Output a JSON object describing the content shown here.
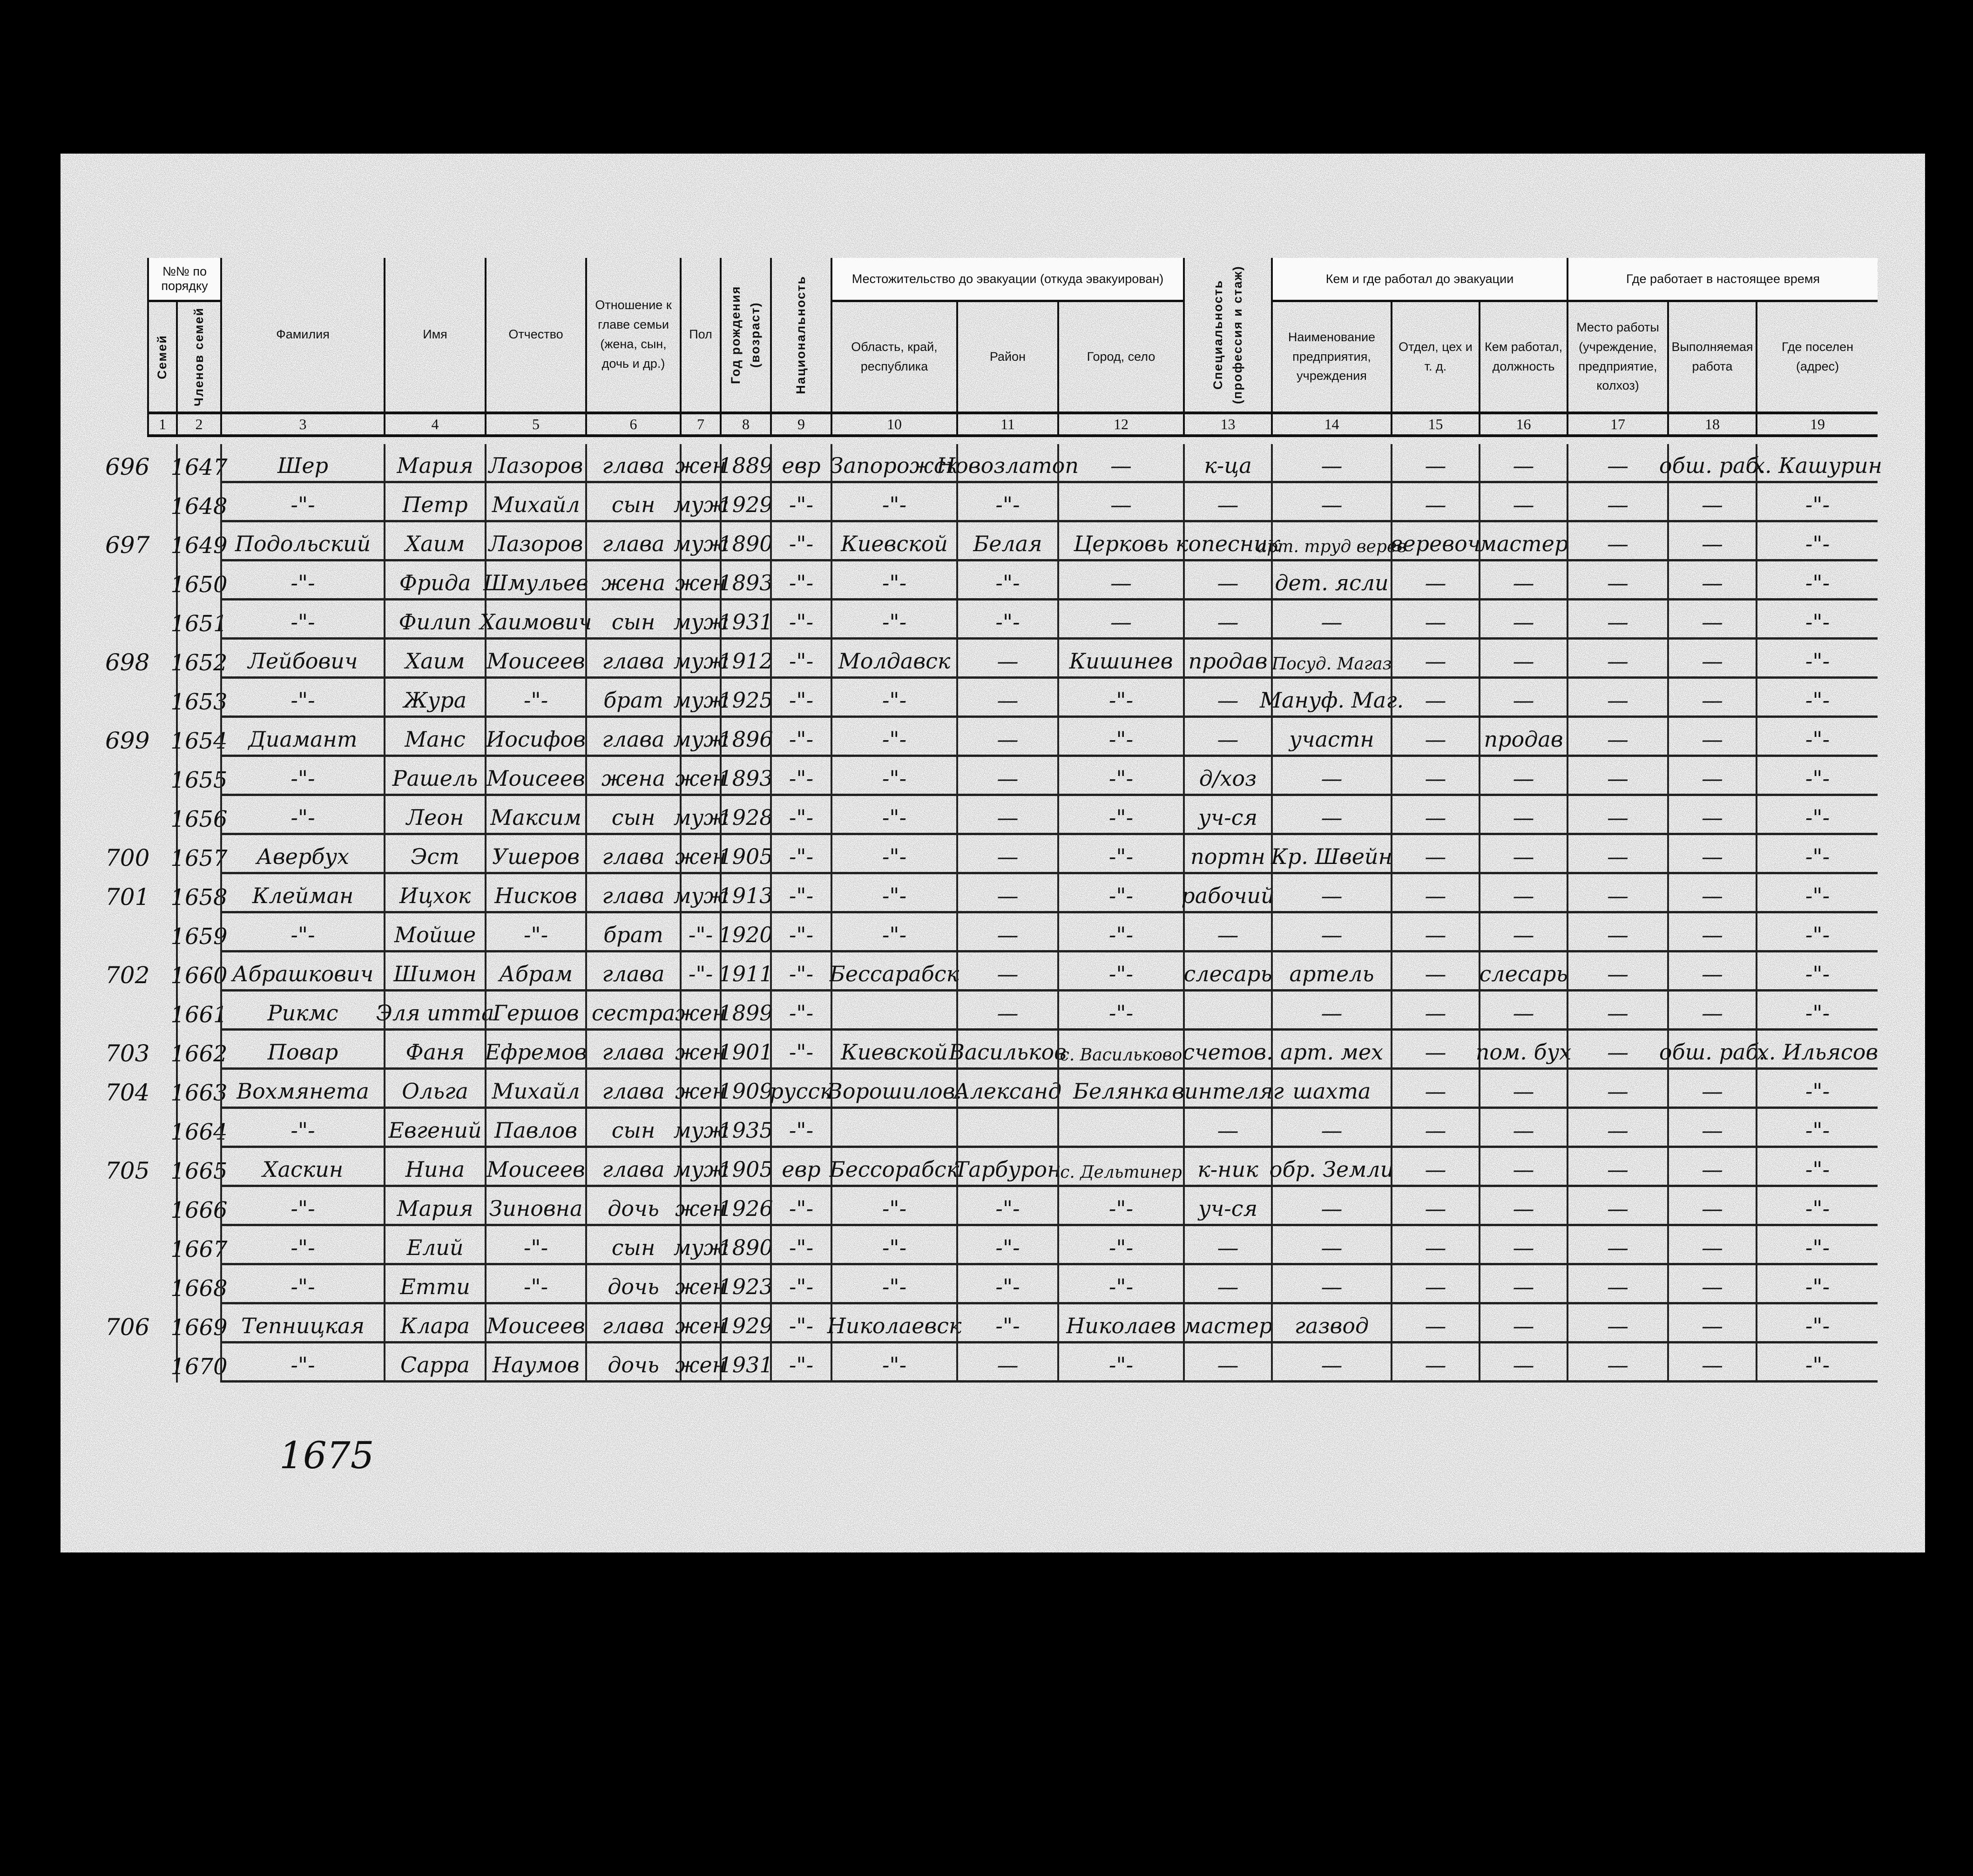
{
  "header": {
    "group_order_no": "№№ по порядку",
    "group_residence": "Местожительство до эвакуации (откуда эвакуирован)",
    "group_prev_work": "Кем и где работал до эвакуации",
    "group_current_work": "Где работает в настоящее время",
    "columns": [
      "Семей",
      "Членов семей",
      "Фамилия",
      "Имя",
      "Отчество",
      "Отношение к главе семьи (жена, сын, дочь и др.)",
      "Пол",
      "Год рождения (возраст)",
      "Национальность",
      "Область, край, республика",
      "Район",
      "Город, село",
      "Специальность (профессия и стаж)",
      "Наименование предприятия, учреждения",
      "Отдел, цех и т. д.",
      "Кем работал, должность",
      "Место работы (учреждение, предприятие, колхоз)",
      "Выполняемая работа",
      "Где поселен (адрес)"
    ],
    "numbers": [
      "1",
      "2",
      "3",
      "4",
      "5",
      "6",
      "7",
      "8",
      "9",
      "10",
      "11",
      "12",
      "13",
      "14",
      "15",
      "16",
      "17",
      "18",
      "19"
    ]
  },
  "rows": [
    [
      "696",
      "1647",
      "Шер",
      "Мария",
      "Лазоров",
      "глава",
      "жен",
      "1889",
      "евр",
      "Запорожск",
      "Новозлатоп",
      "—",
      "к-ца",
      "—",
      "—",
      "—",
      "—",
      "обш. раб.",
      "х. Кашурин"
    ],
    [
      "",
      "1648",
      "-\"-",
      "Петр",
      "Михайл",
      "сын",
      "муж",
      "1929",
      "-\"-",
      "-\"-",
      "-\"-",
      "—",
      "—",
      "—",
      "—",
      "—",
      "—",
      "—",
      "-\"-"
    ],
    [
      "697",
      "1649",
      "Подольский",
      "Хаим",
      "Лазоров",
      "глава",
      "муж",
      "1890",
      "-\"-",
      "Киевской",
      "Белая",
      "Церковь",
      "копесник",
      "арт. труд верев",
      "веревоч",
      "мастер",
      "—",
      "—",
      "-\"-"
    ],
    [
      "",
      "1650",
      "-\"-",
      "Фрида",
      "Шмульев",
      "жена",
      "жен",
      "1893",
      "-\"-",
      "-\"-",
      "-\"-",
      "—",
      "—",
      "дет. ясли",
      "—",
      "—",
      "—",
      "—",
      "-\"-"
    ],
    [
      "",
      "1651",
      "-\"-",
      "Филип",
      "Хаимович",
      "сын",
      "муж",
      "1931",
      "-\"-",
      "-\"-",
      "-\"-",
      "—",
      "—",
      "—",
      "—",
      "—",
      "—",
      "—",
      "-\"-"
    ],
    [
      "698",
      "1652",
      "Лейбович",
      "Хаим",
      "Моисеев",
      "глава",
      "муж",
      "1912",
      "-\"-",
      "Молдавск",
      "—",
      "Кишинев",
      "продав",
      "Посуд. Магаз",
      "—",
      "—",
      "—",
      "—",
      "-\"-"
    ],
    [
      "",
      "1653",
      "-\"-",
      "Жура",
      "-\"-",
      "брат",
      "муж",
      "1925",
      "-\"-",
      "-\"-",
      "—",
      "-\"-",
      "—",
      "Мануф. Маг.",
      "—",
      "—",
      "—",
      "—",
      "-\"-"
    ],
    [
      "699",
      "1654",
      "Диамант",
      "Манс",
      "Иосифов",
      "глава",
      "муж",
      "1896",
      "-\"-",
      "-\"-",
      "—",
      "-\"-",
      "—",
      "участн",
      "—",
      "продав",
      "—",
      "—",
      "-\"-"
    ],
    [
      "",
      "1655",
      "-\"-",
      "Рашель",
      "Моисеев",
      "жена",
      "жен",
      "1893",
      "-\"-",
      "-\"-",
      "—",
      "-\"-",
      "д/хоз",
      "—",
      "—",
      "—",
      "—",
      "—",
      "-\"-"
    ],
    [
      "",
      "1656",
      "-\"-",
      "Леон",
      "Максим",
      "сын",
      "муж",
      "1928",
      "-\"-",
      "-\"-",
      "—",
      "-\"-",
      "уч-ся",
      "—",
      "—",
      "—",
      "—",
      "—",
      "-\"-"
    ],
    [
      "700",
      "1657",
      "Авербух",
      "Эст",
      "Ушеров",
      "глава",
      "жен",
      "1905",
      "-\"-",
      "-\"-",
      "—",
      "-\"-",
      "портн",
      "Кр. Швейн",
      "—",
      "—",
      "—",
      "—",
      "-\"-"
    ],
    [
      "701",
      "1658",
      "Клейман",
      "Ицхок",
      "Нисков",
      "глава",
      "муж",
      "1913",
      "-\"-",
      "-\"-",
      "—",
      "-\"-",
      "рабочий",
      "—",
      "—",
      "—",
      "—",
      "—",
      "-\"-"
    ],
    [
      "",
      "1659",
      "-\"-",
      "Мойше",
      "-\"-",
      "брат",
      "-\"-",
      "1920",
      "-\"-",
      "-\"-",
      "—",
      "-\"-",
      "—",
      "—",
      "—",
      "—",
      "—",
      "—",
      "-\"-"
    ],
    [
      "702",
      "1660",
      "Абрашкович",
      "Шимон",
      "Абрам",
      "глава",
      "-\"-",
      "1911",
      "-\"-",
      "Бессарабск",
      "—",
      "-\"-",
      "слесарь",
      "артель",
      "—",
      "слесарь",
      "—",
      "—",
      "-\"-"
    ],
    [
      "",
      "1661",
      "Рикмс",
      "Эля итта",
      "Гершов",
      "сестра",
      "жен",
      "1899",
      "-\"-",
      "",
      "—",
      "-\"-",
      "",
      "—",
      "—",
      "—",
      "—",
      "—",
      "-\"-"
    ],
    [
      "703",
      "1662",
      "Повар",
      "Фаня",
      "Ефремов",
      "глава",
      "жен",
      "1901",
      "-\"-",
      "Киевской",
      "Васильков",
      "с. Васильково",
      "счетов.",
      "арт. мех",
      "—",
      "пом. бух",
      "—",
      "обш. раб.",
      "х. Ильясов"
    ],
    [
      "704",
      "1663",
      "Вохмянета",
      "Ольга",
      "Михайл",
      "глава",
      "жен",
      "1909",
      "русск",
      "Ворошилов.",
      "Александ",
      "Белянка",
      "винтеляг",
      "шахта",
      "—",
      "—",
      "—",
      "—",
      "-\"-"
    ],
    [
      "",
      "1664",
      "-\"-",
      "Евгений",
      "Павлов",
      "сын",
      "муж",
      "1935",
      "-\"-",
      "",
      "",
      "",
      "—",
      "—",
      "—",
      "—",
      "—",
      "—",
      "-\"-"
    ],
    [
      "705",
      "1665",
      "Хаскин",
      "Нина",
      "Моисеев",
      "глава",
      "муж",
      "1905",
      "евр",
      "Бессорабск",
      "Тарбурон",
      "с. Дельтинер",
      "к-ник",
      "обр. Земли",
      "—",
      "—",
      "—",
      "—",
      "-\"-"
    ],
    [
      "",
      "1666",
      "-\"-",
      "Мария",
      "Зиновна",
      "дочь",
      "жен",
      "1926",
      "-\"-",
      "-\"-",
      "-\"-",
      "-\"-",
      "уч-ся",
      "—",
      "—",
      "—",
      "—",
      "—",
      "-\"-"
    ],
    [
      "",
      "1667",
      "-\"-",
      "Елий",
      "-\"-",
      "сын",
      "муж",
      "1890",
      "-\"-",
      "-\"-",
      "-\"-",
      "-\"-",
      "—",
      "—",
      "—",
      "—",
      "—",
      "—",
      "-\"-"
    ],
    [
      "",
      "1668",
      "-\"-",
      "Етти",
      "-\"-",
      "дочь",
      "жен",
      "1923",
      "-\"-",
      "-\"-",
      "-\"-",
      "-\"-",
      "—",
      "—",
      "—",
      "—",
      "—",
      "—",
      "-\"-"
    ],
    [
      "706",
      "1669",
      "Тепницкая",
      "Клара",
      "Моисеев",
      "глава",
      "жен",
      "1929",
      "-\"-",
      "Николаевск",
      "-\"-",
      "Николаев",
      "мастер",
      "газвод",
      "—",
      "—",
      "—",
      "—",
      "-\"-"
    ],
    [
      "",
      "1670",
      "-\"-",
      "Сарра",
      "Наумов",
      "дочь",
      "жен",
      "1931",
      "-\"-",
      "-\"-",
      "—",
      "-\"-",
      "—",
      "—",
      "—",
      "—",
      "—",
      "—",
      "-\"-"
    ]
  ],
  "footer": {
    "total": "1675"
  }
}
